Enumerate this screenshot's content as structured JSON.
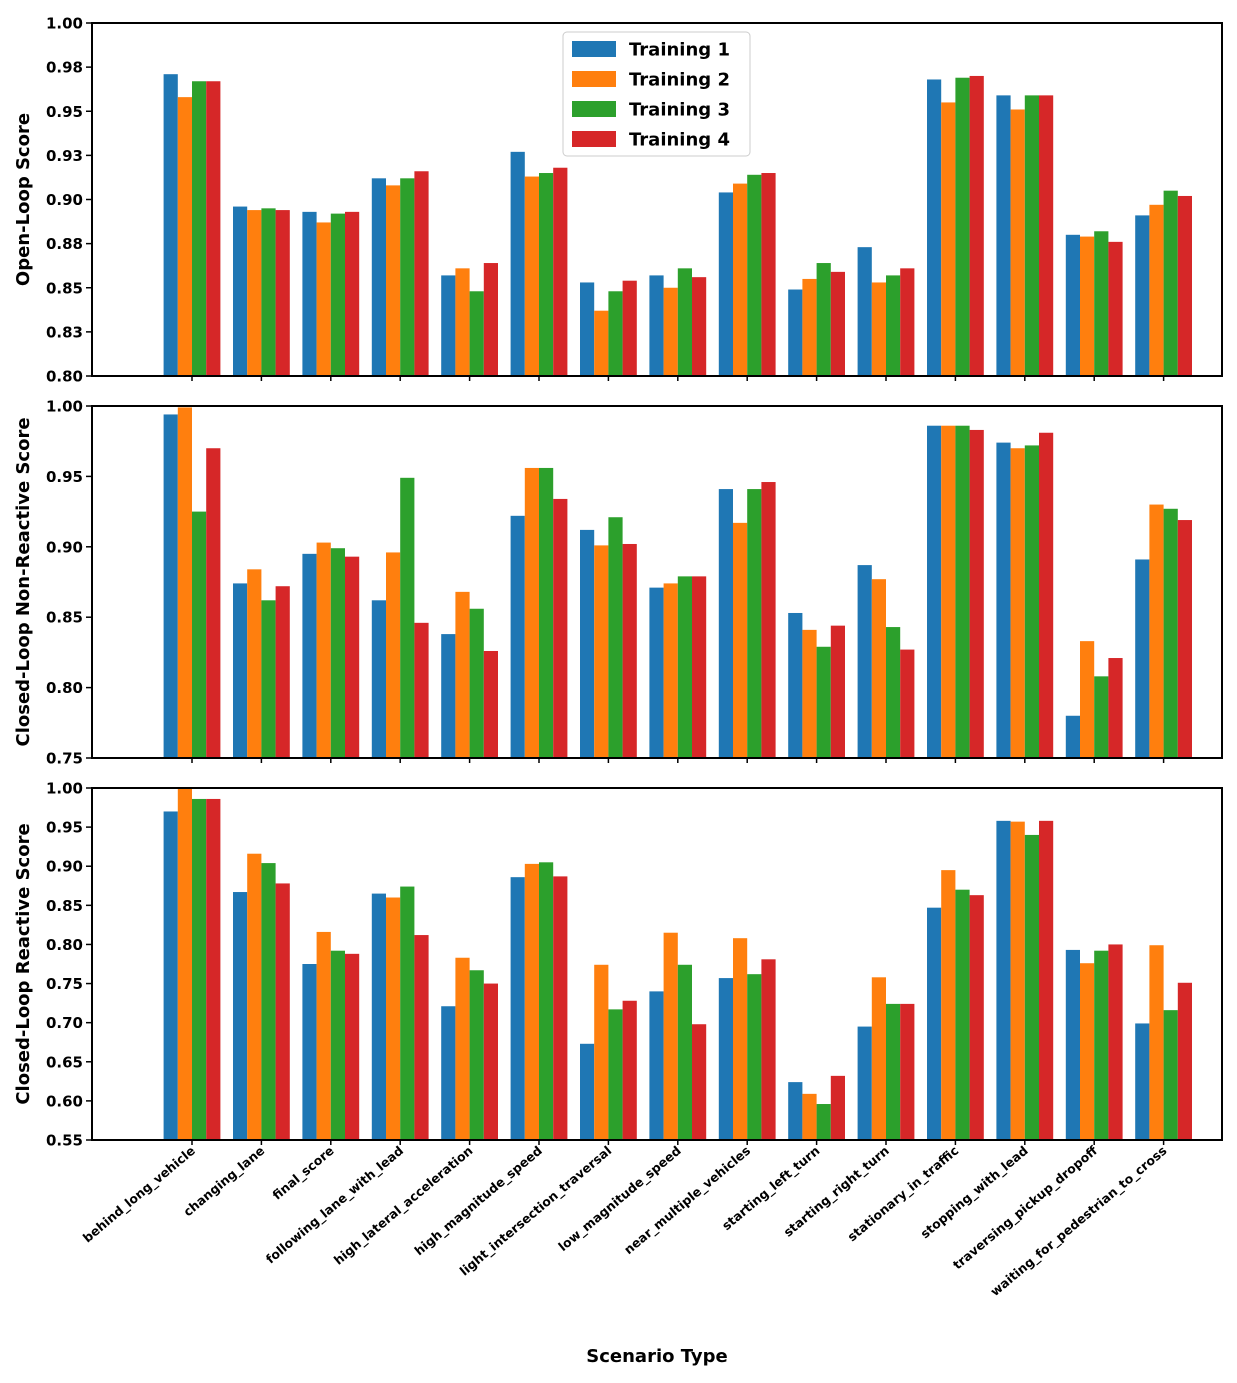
{
  "chart_data": [
    {
      "type": "bar",
      "ylabel": "Open-Loop Score",
      "ylim": [
        0.8,
        1.0
      ],
      "yticks": [
        "0.80",
        "0.83",
        "0.85",
        "0.88",
        "0.90",
        "0.93",
        "0.95",
        "0.98",
        "1.00"
      ],
      "ytick_values": [
        0.8,
        0.825,
        0.85,
        0.875,
        0.9,
        0.925,
        0.95,
        0.975,
        1.0
      ],
      "legend_position": "top-center",
      "categories": [
        "behind_long_vehicle",
        "changing_lane",
        "final_score",
        "following_lane_with_lead",
        "high_lateral_acceleration",
        "high_magnitude_speed",
        "light_intersection_traversal",
        "low_magnitude_speed",
        "near_multiple_vehicles",
        "starting_left_turn",
        "starting_right_turn",
        "stationary_in_traffic",
        "stopping_with_lead",
        "traversing_pickup_dropoff",
        "waiting_for_pedestrian_to_cross"
      ],
      "series": [
        {
          "name": "Training 1",
          "values": [
            0.971,
            0.896,
            0.893,
            0.912,
            0.857,
            0.927,
            0.853,
            0.857,
            0.904,
            0.849,
            0.873,
            0.968,
            0.959,
            0.88,
            0.891
          ]
        },
        {
          "name": "Training 2",
          "values": [
            0.958,
            0.894,
            0.887,
            0.908,
            0.861,
            0.913,
            0.837,
            0.85,
            0.909,
            0.855,
            0.853,
            0.955,
            0.951,
            0.879,
            0.897
          ]
        },
        {
          "name": "Training 3",
          "values": [
            0.967,
            0.895,
            0.892,
            0.912,
            0.848,
            0.915,
            0.848,
            0.861,
            0.914,
            0.864,
            0.857,
            0.969,
            0.959,
            0.882,
            0.905
          ]
        },
        {
          "name": "Training 4",
          "values": [
            0.967,
            0.894,
            0.893,
            0.916,
            0.864,
            0.918,
            0.854,
            0.856,
            0.915,
            0.859,
            0.861,
            0.97,
            0.959,
            0.876,
            0.902
          ]
        }
      ]
    },
    {
      "type": "bar",
      "ylabel": "Closed-Loop Non-Reactive Score",
      "ylim": [
        0.75,
        1.0
      ],
      "yticks": [
        "0.75",
        "0.80",
        "0.85",
        "0.90",
        "0.95",
        "1.00"
      ],
      "ytick_values": [
        0.75,
        0.8,
        0.85,
        0.9,
        0.95,
        1.0
      ],
      "categories": [
        "behind_long_vehicle",
        "changing_lane",
        "final_score",
        "following_lane_with_lead",
        "high_lateral_acceleration",
        "high_magnitude_speed",
        "light_intersection_traversal",
        "low_magnitude_speed",
        "near_multiple_vehicles",
        "starting_left_turn",
        "starting_right_turn",
        "stationary_in_traffic",
        "stopping_with_lead",
        "traversing_pickup_dropoff",
        "waiting_for_pedestrian_to_cross"
      ],
      "series": [
        {
          "name": "Training 1",
          "values": [
            0.994,
            0.874,
            0.895,
            0.862,
            0.838,
            0.922,
            0.912,
            0.871,
            0.941,
            0.853,
            0.887,
            0.986,
            0.974,
            0.78,
            0.891
          ]
        },
        {
          "name": "Training 2",
          "values": [
            0.999,
            0.884,
            0.903,
            0.896,
            0.868,
            0.956,
            0.901,
            0.874,
            0.917,
            0.841,
            0.877,
            0.986,
            0.97,
            0.833,
            0.93
          ]
        },
        {
          "name": "Training 3",
          "values": [
            0.925,
            0.862,
            0.899,
            0.949,
            0.856,
            0.956,
            0.921,
            0.879,
            0.941,
            0.829,
            0.843,
            0.986,
            0.972,
            0.808,
            0.927
          ]
        },
        {
          "name": "Training 4",
          "values": [
            0.97,
            0.872,
            0.893,
            0.846,
            0.826,
            0.934,
            0.902,
            0.879,
            0.946,
            0.844,
            0.827,
            0.983,
            0.981,
            0.821,
            0.919
          ]
        }
      ]
    },
    {
      "type": "bar",
      "ylabel": "Closed-Loop Reactive Score",
      "xlabel": "Scenario Type",
      "ylim": [
        0.55,
        1.0
      ],
      "yticks": [
        "0.55",
        "0.60",
        "0.65",
        "0.70",
        "0.75",
        "0.80",
        "0.85",
        "0.90",
        "0.95",
        "1.00"
      ],
      "ytick_values": [
        0.55,
        0.6,
        0.65,
        0.7,
        0.75,
        0.8,
        0.85,
        0.9,
        0.95,
        1.0
      ],
      "categories": [
        "behind_long_vehicle",
        "changing_lane",
        "final_score",
        "following_lane_with_lead",
        "high_lateral_acceleration",
        "high_magnitude_speed",
        "light_intersection_traversal",
        "low_magnitude_speed",
        "near_multiple_vehicles",
        "starting_left_turn",
        "starting_right_turn",
        "stationary_in_traffic",
        "stopping_with_lead",
        "traversing_pickup_dropoff",
        "waiting_for_pedestrian_to_cross"
      ],
      "series": [
        {
          "name": "Training 1",
          "values": [
            0.97,
            0.867,
            0.775,
            0.865,
            0.721,
            0.886,
            0.673,
            0.74,
            0.757,
            0.624,
            0.695,
            0.847,
            0.958,
            0.793,
            0.699
          ]
        },
        {
          "name": "Training 2",
          "values": [
            1.0,
            0.916,
            0.816,
            0.86,
            0.783,
            0.903,
            0.774,
            0.815,
            0.808,
            0.609,
            0.758,
            0.895,
            0.957,
            0.776,
            0.799
          ]
        },
        {
          "name": "Training 3",
          "values": [
            0.986,
            0.904,
            0.792,
            0.874,
            0.767,
            0.905,
            0.717,
            0.774,
            0.762,
            0.596,
            0.724,
            0.87,
            0.94,
            0.792,
            0.716
          ]
        },
        {
          "name": "Training 4",
          "values": [
            0.986,
            0.878,
            0.788,
            0.812,
            0.75,
            0.887,
            0.728,
            0.698,
            0.781,
            0.632,
            0.724,
            0.863,
            0.958,
            0.8,
            0.751
          ]
        }
      ]
    }
  ],
  "colors": [
    "#1f77b4",
    "#ff7f0e",
    "#2ca02c",
    "#d62728"
  ]
}
